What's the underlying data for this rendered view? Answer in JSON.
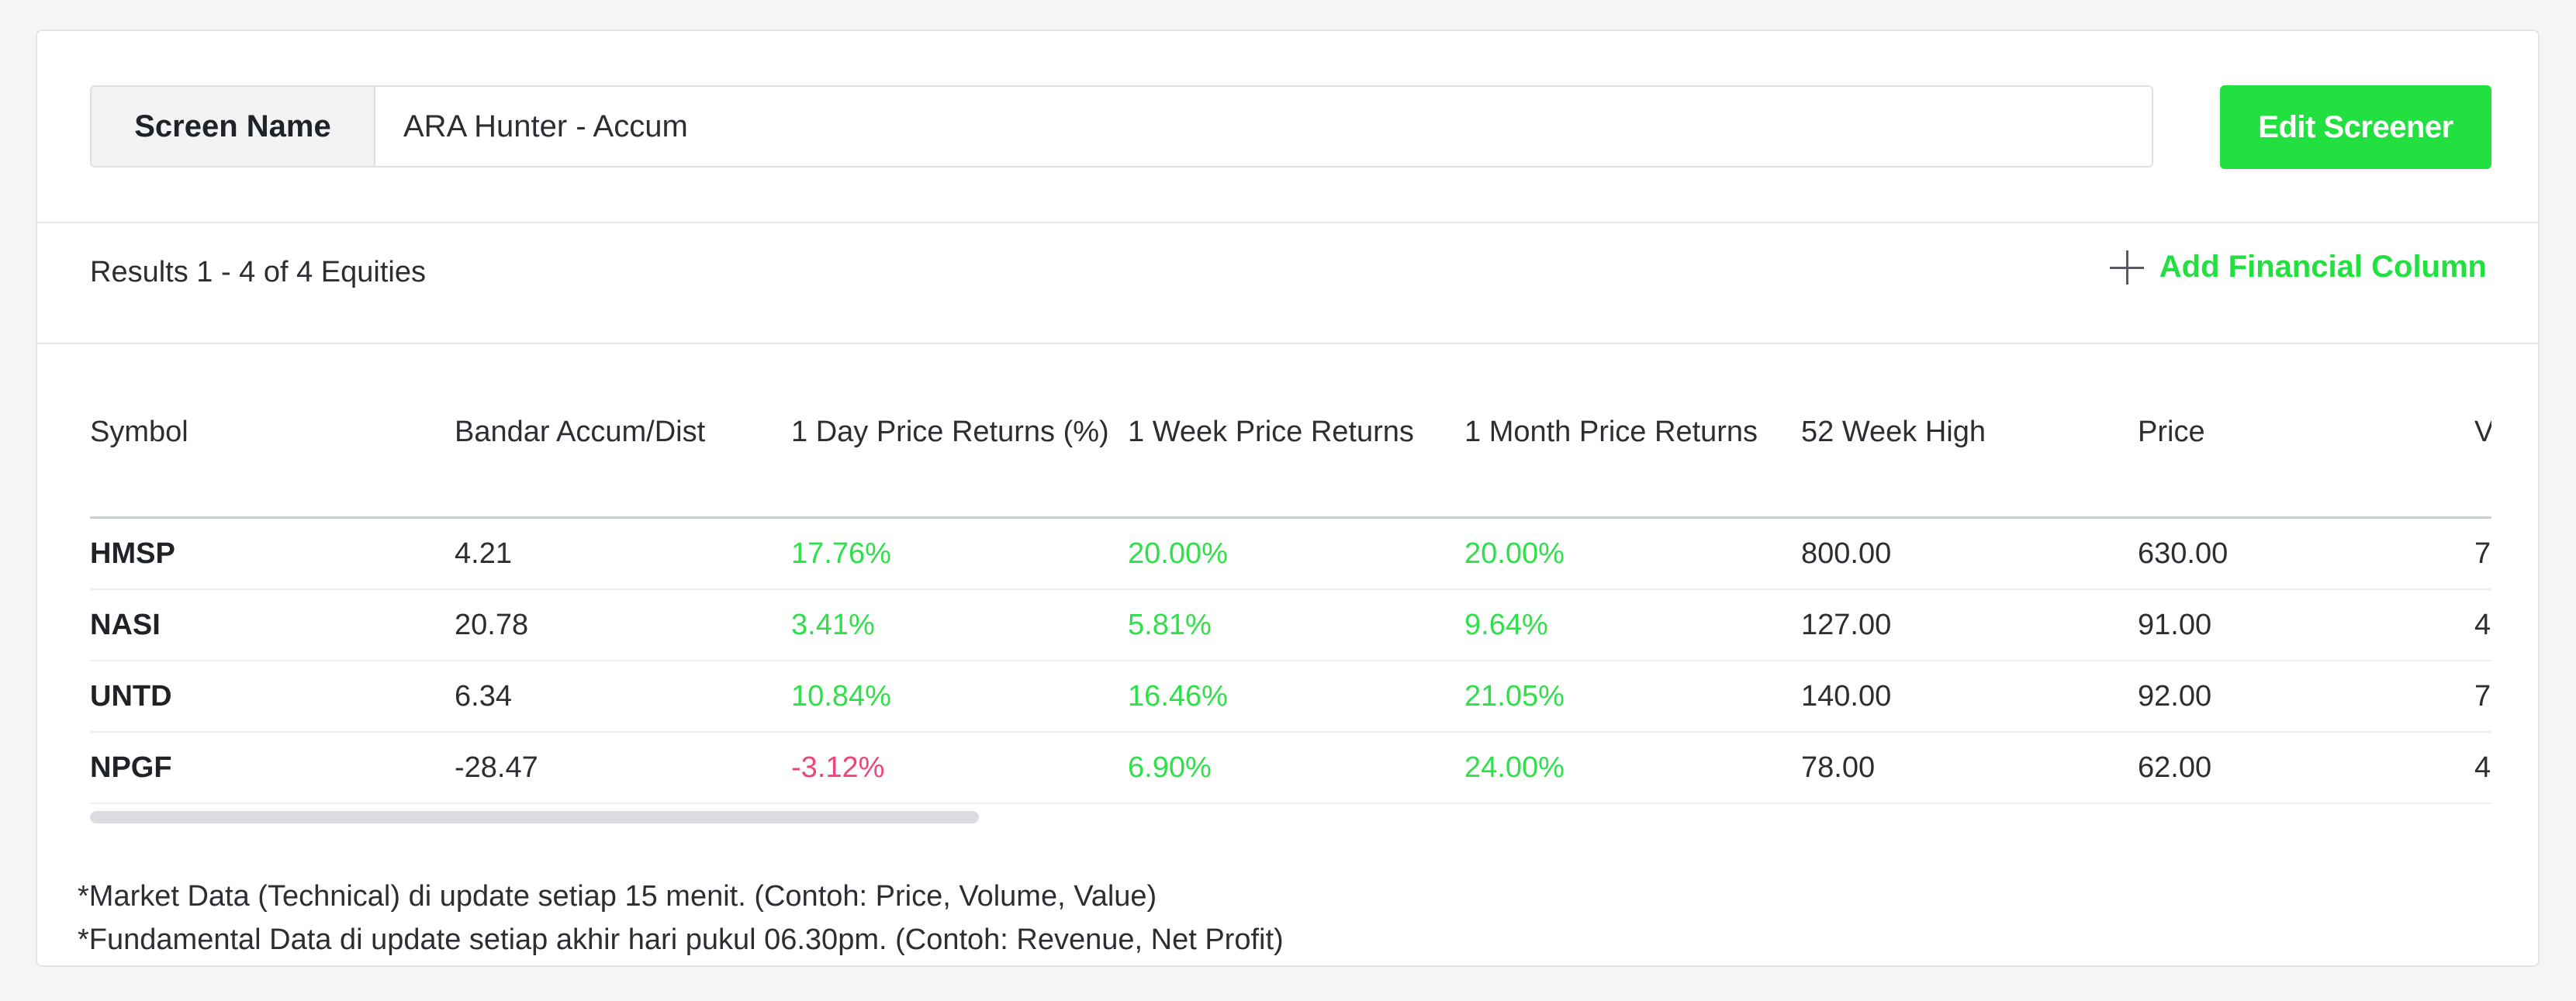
{
  "header": {
    "screen_name_label": "Screen Name",
    "screen_name_value": "ARA Hunter - Accum",
    "edit_button_label": "Edit Screener"
  },
  "results": {
    "summary": "Results 1 - 4 of 4 Equities",
    "add_column_label": "Add Financial Column"
  },
  "table": {
    "columns": [
      "Symbol",
      "Bandar Accum/Dist",
      "1 Day Price Returns (%)",
      "1 Week Price Returns",
      "1 Month Price Returns",
      "52 Week High",
      "Price",
      "V"
    ],
    "rows": [
      {
        "symbol": "HMSP",
        "bandar": "4.21",
        "day": "17.76%",
        "week": "20.00%",
        "month": "20.00%",
        "high52": "800.00",
        "price": "630.00",
        "v": "7"
      },
      {
        "symbol": "NASI",
        "bandar": "20.78",
        "day": "3.41%",
        "week": "5.81%",
        "month": "9.64%",
        "high52": "127.00",
        "price": "91.00",
        "v": "4"
      },
      {
        "symbol": "UNTD",
        "bandar": "6.34",
        "day": "10.84%",
        "week": "16.46%",
        "month": "21.05%",
        "high52": "140.00",
        "price": "92.00",
        "v": "7"
      },
      {
        "symbol": "NPGF",
        "bandar": "-28.47",
        "day": "-3.12%",
        "week": "6.90%",
        "month": "24.00%",
        "high52": "78.00",
        "price": "62.00",
        "v": "4"
      }
    ]
  },
  "notes": [
    "*Market Data (Technical) di update setiap 15 menit. (Contoh: Price, Volume, Value)",
    "*Fundamental Data di update setiap akhir hari pukul 06.30pm. (Contoh: Revenue, Net Profit)"
  ],
  "colors": {
    "accent_green": "#22e03f",
    "positive": "#2fe04a",
    "negative": "#f0457a"
  }
}
